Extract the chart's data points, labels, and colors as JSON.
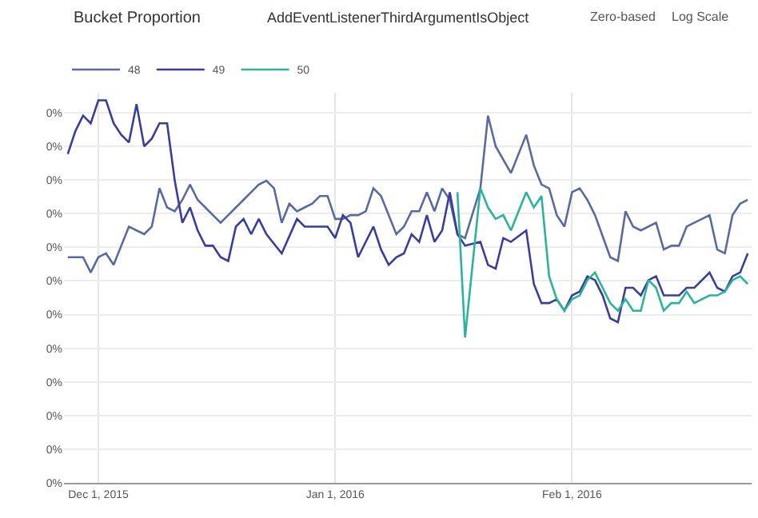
{
  "chart_data": {
    "type": "line",
    "title": "Bucket Proportion",
    "subtitle": "AddEventListenerThirdArgumentIsObject",
    "annotations": [
      "Zero-based",
      "Log Scale"
    ],
    "grid": true,
    "legend": "top left",
    "marker": "none",
    "line_style": "solid",
    "xlim": [
      "2015-11-26T12:00",
      "2016-02-24T12:00"
    ],
    "xticks": [
      {
        "value": "2015-12-01",
        "label": "Dec 1, 2015"
      },
      {
        "value": "2016-01-01",
        "label": "Jan 1, 2016"
      },
      {
        "value": "2016-02-01",
        "label": "Feb 1, 2016"
      }
    ],
    "ylim": [
      0,
      0.51
    ],
    "yticks": [
      {
        "value": 0,
        "label": "0%"
      },
      {
        "value": 0.044,
        "label": "0%"
      },
      {
        "value": 0.088,
        "label": "0%"
      },
      {
        "value": 0.132,
        "label": "0%"
      },
      {
        "value": 0.176,
        "label": "0%"
      },
      {
        "value": 0.22,
        "label": "0%"
      },
      {
        "value": 0.264,
        "label": "0%"
      },
      {
        "value": 0.308,
        "label": "0%"
      },
      {
        "value": 0.352,
        "label": "0%"
      },
      {
        "value": 0.396,
        "label": "0%"
      },
      {
        "value": 0.44,
        "label": "0%"
      },
      {
        "value": 0.484,
        "label": "0%"
      }
    ],
    "series": [
      {
        "name": "48",
        "color": "#5a6aa0",
        "x": [
          "2015-11-27",
          "2015-11-29",
          "2015-11-30",
          "2015-12-01",
          "2015-12-02",
          "2015-12-03",
          "2015-12-04",
          "2015-12-05",
          "2015-12-06",
          "2015-12-07",
          "2015-12-08",
          "2015-12-09",
          "2015-12-10",
          "2015-12-11",
          "2015-12-12",
          "2015-12-13",
          "2015-12-14",
          "2015-12-15",
          "2015-12-16",
          "2015-12-17",
          "2015-12-18",
          "2015-12-19",
          "2015-12-20",
          "2015-12-21",
          "2015-12-22",
          "2015-12-23",
          "2015-12-24",
          "2015-12-25",
          "2015-12-26",
          "2015-12-27",
          "2015-12-28",
          "2015-12-29",
          "2015-12-30",
          "2015-12-31",
          "2016-01-01",
          "2016-01-02",
          "2016-01-03",
          "2016-01-04",
          "2016-01-05",
          "2016-01-06",
          "2016-01-07",
          "2016-01-09",
          "2016-01-10",
          "2016-01-11",
          "2016-01-12",
          "2016-01-13",
          "2016-01-14",
          "2016-01-15",
          "2016-01-16",
          "2016-01-17",
          "2016-01-18",
          "2016-01-20",
          "2016-01-21",
          "2016-01-22",
          "2016-01-24",
          "2016-01-26",
          "2016-01-27",
          "2016-01-28",
          "2016-01-29",
          "2016-01-30",
          "2016-01-31",
          "2016-02-01",
          "2016-02-02",
          "2016-02-03",
          "2016-02-04",
          "2016-02-06",
          "2016-02-07",
          "2016-02-08",
          "2016-02-09",
          "2016-02-10",
          "2016-02-12",
          "2016-02-13",
          "2016-02-14",
          "2016-02-15",
          "2016-02-16",
          "2016-02-17",
          "2016-02-19",
          "2016-02-20",
          "2016-02-21",
          "2016-02-22",
          "2016-02-23",
          "2016-02-24"
        ],
        "values": [
          0.295,
          0.295,
          0.275,
          0.295,
          0.3,
          0.285,
          0.31,
          0.335,
          0.33,
          0.325,
          0.335,
          0.385,
          0.36,
          0.355,
          0.37,
          0.39,
          0.37,
          0.36,
          0.35,
          0.34,
          0.35,
          0.36,
          0.37,
          0.38,
          0.39,
          0.395,
          0.385,
          0.34,
          0.365,
          0.355,
          0.36,
          0.365,
          0.375,
          0.375,
          0.345,
          0.345,
          0.35,
          0.35,
          0.355,
          0.385,
          0.375,
          0.325,
          0.335,
          0.355,
          0.355,
          0.38,
          0.355,
          0.385,
          0.37,
          0.325,
          0.32,
          0.385,
          0.48,
          0.44,
          0.405,
          0.455,
          0.415,
          0.39,
          0.385,
          0.35,
          0.335,
          0.38,
          0.385,
          0.37,
          0.35,
          0.295,
          0.29,
          0.355,
          0.335,
          0.33,
          0.34,
          0.305,
          0.31,
          0.31,
          0.335,
          0.34,
          0.35,
          0.305,
          0.3,
          0.35,
          0.365,
          0.37
        ]
      },
      {
        "name": "49",
        "color": "#3a3d99",
        "x": [
          "2015-11-27",
          "2015-11-28",
          "2015-11-29",
          "2015-11-30",
          "2015-12-01",
          "2015-12-02",
          "2015-12-03",
          "2015-12-04",
          "2015-12-05",
          "2015-12-06",
          "2015-12-07",
          "2015-12-08",
          "2015-12-09",
          "2015-12-10",
          "2015-12-11",
          "2015-12-12",
          "2015-12-13",
          "2015-12-14",
          "2015-12-15",
          "2015-12-16",
          "2015-12-17",
          "2015-12-18",
          "2015-12-19",
          "2015-12-20",
          "2015-12-21",
          "2015-12-22",
          "2015-12-23",
          "2015-12-25",
          "2015-12-27",
          "2015-12-28",
          "2015-12-29",
          "2015-12-30",
          "2015-12-31",
          "2016-01-01",
          "2016-01-02",
          "2016-01-03",
          "2016-01-04",
          "2016-01-06",
          "2016-01-07",
          "2016-01-08",
          "2016-01-09",
          "2016-01-10",
          "2016-01-11",
          "2016-01-12",
          "2016-01-13",
          "2016-01-14",
          "2016-01-15",
          "2016-01-16",
          "2016-01-17",
          "2016-01-18",
          "2016-01-20",
          "2016-01-21",
          "2016-01-22",
          "2016-01-23",
          "2016-01-24",
          "2016-01-26",
          "2016-01-27",
          "2016-01-28",
          "2016-01-29",
          "2016-01-30",
          "2016-01-31",
          "2016-02-01",
          "2016-02-02",
          "2016-02-03",
          "2016-02-04",
          "2016-02-05",
          "2016-02-06",
          "2016-02-07",
          "2016-02-08",
          "2016-02-09",
          "2016-02-10",
          "2016-02-11",
          "2016-02-12",
          "2016-02-13",
          "2016-02-14",
          "2016-02-15",
          "2016-02-16",
          "2016-02-17",
          "2016-02-19",
          "2016-02-20",
          "2016-02-21",
          "2016-02-22",
          "2016-02-23",
          "2016-02-24"
        ],
        "values": [
          0.43,
          0.46,
          0.48,
          0.47,
          0.5,
          0.5,
          0.47,
          0.455,
          0.445,
          0.495,
          0.44,
          0.45,
          0.47,
          0.47,
          0.395,
          0.34,
          0.36,
          0.33,
          0.31,
          0.31,
          0.295,
          0.29,
          0.335,
          0.345,
          0.325,
          0.345,
          0.325,
          0.3,
          0.345,
          0.335,
          0.335,
          0.335,
          0.335,
          0.32,
          0.35,
          0.34,
          0.295,
          0.335,
          0.305,
          0.285,
          0.295,
          0.3,
          0.325,
          0.315,
          0.35,
          0.315,
          0.33,
          0.38,
          0.325,
          0.31,
          0.315,
          0.285,
          0.28,
          0.32,
          0.315,
          0.33,
          0.26,
          0.235,
          0.235,
          0.24,
          0.225,
          0.245,
          0.25,
          0.27,
          0.265,
          0.245,
          0.215,
          0.21,
          0.255,
          0.255,
          0.245,
          0.265,
          0.27,
          0.245,
          0.245,
          0.245,
          0.255,
          0.255,
          0.275,
          0.255,
          0.25,
          0.27,
          0.275,
          0.3
        ]
      },
      {
        "name": "50",
        "color": "#2bb39c",
        "x": [
          "2016-01-17",
          "2016-01-18",
          "2016-01-20",
          "2016-01-21",
          "2016-01-22",
          "2016-01-23",
          "2016-01-24",
          "2016-01-26",
          "2016-01-27",
          "2016-01-28",
          "2016-01-29",
          "2016-01-30",
          "2016-01-31",
          "2016-02-01",
          "2016-02-02",
          "2016-02-03",
          "2016-02-04",
          "2016-02-05",
          "2016-02-06",
          "2016-02-07",
          "2016-02-08",
          "2016-02-09",
          "2016-02-10",
          "2016-02-11",
          "2016-02-12",
          "2016-02-13",
          "2016-02-14",
          "2016-02-15",
          "2016-02-16",
          "2016-02-17",
          "2016-02-19",
          "2016-02-20",
          "2016-02-21",
          "2016-02-22",
          "2016-02-23",
          "2016-02-24"
        ],
        "values": [
          0.38,
          0.19,
          0.385,
          0.36,
          0.345,
          0.35,
          0.33,
          0.38,
          0.36,
          0.375,
          0.27,
          0.24,
          0.225,
          0.24,
          0.245,
          0.265,
          0.275,
          0.255,
          0.235,
          0.225,
          0.24,
          0.225,
          0.225,
          0.265,
          0.255,
          0.225,
          0.235,
          0.235,
          0.25,
          0.235,
          0.245,
          0.245,
          0.25,
          0.265,
          0.27,
          0.26
        ]
      }
    ]
  }
}
